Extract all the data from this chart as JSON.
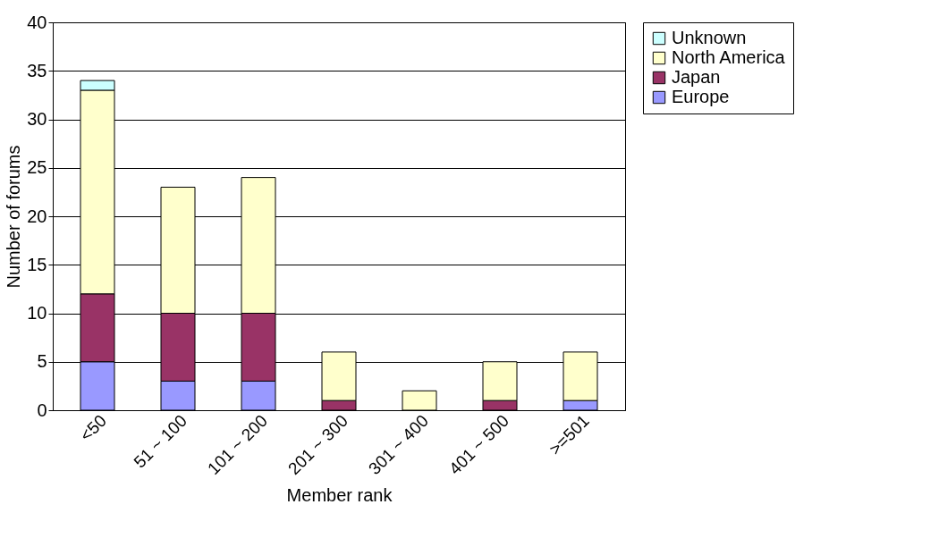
{
  "chart_data": {
    "type": "bar",
    "stacked": true,
    "xlabel": "Member rank",
    "ylabel": "Number of forums",
    "categories": [
      "<50",
      "51 ~ 100",
      "101 ~ 200",
      "201 ~ 300",
      "301 ~ 400",
      "401 ~ 500",
      ">=501"
    ],
    "series": [
      {
        "name": "Europe",
        "color": "#9999ff",
        "values": [
          5,
          3,
          3,
          null,
          null,
          null,
          1
        ]
      },
      {
        "name": "Japan",
        "color": "#993366",
        "values": [
          7,
          7,
          7,
          1,
          null,
          1,
          null
        ]
      },
      {
        "name": "North America",
        "color": "#ffffcc",
        "values": [
          21,
          13,
          14,
          5,
          2,
          4,
          5
        ]
      },
      {
        "name": "Unknown",
        "color": "#ccffff",
        "values": [
          1,
          null,
          null,
          null,
          null,
          null,
          null
        ]
      }
    ],
    "ylim": [
      0,
      40
    ],
    "yticks": [
      0,
      5,
      10,
      15,
      20,
      25,
      30,
      35,
      40
    ],
    "grid": "y",
    "legend": "right"
  }
}
